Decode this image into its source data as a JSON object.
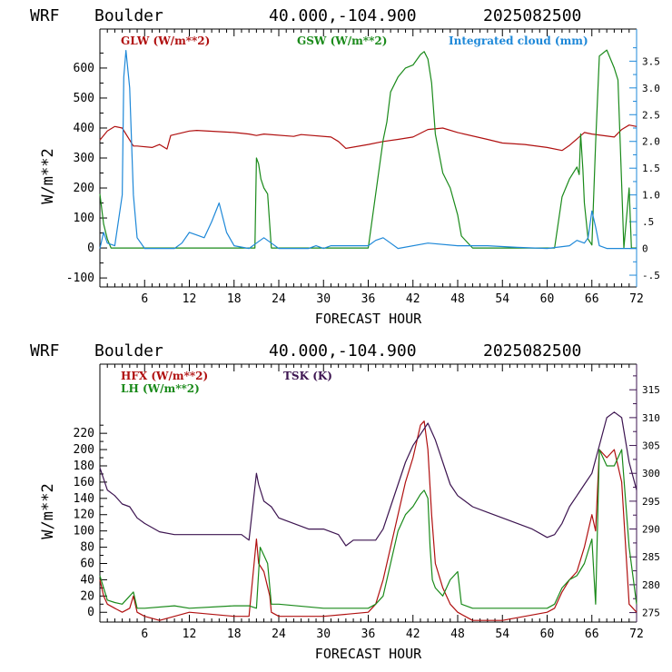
{
  "colors": {
    "red": "#b01010",
    "green": "#1a8a1a",
    "blue": "#1e88d8",
    "purple": "#3c1450",
    "axis": "#000000"
  },
  "chart_data": [
    {
      "type": "line",
      "header": {
        "model": "WRF",
        "location": "Boulder",
        "coords": "40.000,-104.900",
        "date": "2025082500"
      },
      "xlabel": "FORECAST HOUR",
      "ylabel": "W/m**2",
      "xlim": [
        0,
        72
      ],
      "ylim": [
        -130,
        730
      ],
      "y2lim": [
        -0.72,
        4.1
      ],
      "xticks": [
        6,
        12,
        18,
        24,
        30,
        36,
        42,
        48,
        54,
        60,
        66,
        72
      ],
      "yticks": [
        -100,
        0,
        100,
        200,
        300,
        400,
        500,
        600
      ],
      "y2ticks": [
        -0.5,
        0,
        0.5,
        1.0,
        1.5,
        2.0,
        2.5,
        3.0,
        3.5
      ],
      "y2tick_labels": [
        "-.5",
        "0",
        ".5",
        "1.0",
        "1.5",
        "2.0",
        "2.5",
        "3.0",
        "3.5"
      ],
      "series": [
        {
          "name": "GLW (W/m**2)",
          "color": "#b01010",
          "axis": "left",
          "x": [
            0,
            1,
            2,
            3,
            4,
            4.5,
            5,
            7,
            8,
            9,
            9.5,
            12,
            13,
            18,
            20,
            21,
            22,
            26,
            27,
            31,
            32,
            33,
            36,
            38,
            40,
            42,
            44,
            46,
            48,
            52,
            54,
            57,
            60,
            62,
            63,
            65,
            66,
            69,
            70,
            71,
            72
          ],
          "y": [
            360,
            390,
            405,
            400,
            360,
            340,
            340,
            335,
            345,
            330,
            375,
            390,
            392,
            385,
            380,
            375,
            380,
            372,
            378,
            370,
            355,
            332,
            345,
            355,
            362,
            370,
            395,
            400,
            385,
            362,
            350,
            345,
            335,
            325,
            342,
            385,
            380,
            370,
            395,
            410,
            405
          ]
        },
        {
          "name": "GSW (W/m**2)",
          "color": "#1a8a1a",
          "axis": "left",
          "x": [
            0,
            0.5,
            1,
            1.5,
            2,
            19,
            20.8,
            21,
            21.3,
            21.6,
            22,
            22.5,
            23,
            24,
            36,
            37,
            38,
            38.5,
            39,
            40,
            41,
            42,
            43,
            43.5,
            44,
            44.5,
            45,
            46,
            47,
            48,
            48.5,
            50,
            61,
            62,
            63,
            64,
            64.3,
            64.5,
            64.8,
            65,
            65.5,
            66,
            66.5,
            67,
            68,
            69,
            69.5,
            70,
            70.3,
            71,
            71.3,
            72
          ],
          "y": [
            180,
            80,
            30,
            0,
            0,
            0,
            0,
            300,
            280,
            230,
            200,
            180,
            0,
            0,
            0,
            180,
            360,
            420,
            520,
            570,
            600,
            610,
            645,
            655,
            630,
            550,
            380,
            250,
            200,
            110,
            40,
            0,
            0,
            170,
            230,
            270,
            245,
            380,
            260,
            150,
            30,
            10,
            350,
            640,
            660,
            600,
            560,
            210,
            0,
            200,
            0,
            0
          ]
        },
        {
          "name": "Integrated cloud (mm)",
          "color": "#1e88d8",
          "axis": "right",
          "x": [
            0,
            0.5,
            1,
            2,
            3,
            3.2,
            3.5,
            4,
            4.5,
            5,
            6,
            10,
            11,
            12,
            13,
            14,
            15,
            16,
            17,
            18,
            20,
            21,
            22,
            23,
            24,
            28,
            29,
            30,
            31,
            36,
            37,
            38,
            39,
            40,
            44,
            48,
            52,
            56,
            60,
            63,
            64,
            65,
            65.5,
            66,
            66.5,
            67,
            68,
            72
          ],
          "y": [
            0,
            0.3,
            0.1,
            0.05,
            1.0,
            3.2,
            3.7,
            3.0,
            1.0,
            0.2,
            0,
            0,
            0.1,
            0.3,
            0.25,
            0.2,
            0.5,
            0.85,
            0.3,
            0.05,
            0,
            0.1,
            0.2,
            0.1,
            0,
            0,
            0.05,
            0,
            0.05,
            0.05,
            0.15,
            0.2,
            0.1,
            0,
            0.1,
            0.05,
            0.05,
            0.02,
            0,
            0.05,
            0.15,
            0.1,
            0.2,
            0.7,
            0.4,
            0.05,
            0,
            0
          ]
        }
      ]
    },
    {
      "type": "line",
      "header": {
        "model": "WRF",
        "location": "Boulder",
        "coords": "40.000,-104.900",
        "date": "2025082500"
      },
      "xlabel": "FORECAST HOUR",
      "ylabel": "W/m**2",
      "xlim": [
        0,
        72
      ],
      "ylim": [
        -12,
        305
      ],
      "y2lim": [
        273.3,
        319.6
      ],
      "xticks": [
        6,
        12,
        18,
        24,
        30,
        36,
        42,
        48,
        54,
        60,
        66,
        72
      ],
      "yticks": [
        0,
        20,
        40,
        60,
        80,
        100,
        120,
        140,
        160,
        180,
        200,
        220
      ],
      "y2ticks": [
        275,
        280,
        285,
        290,
        295,
        300,
        305,
        310,
        315
      ],
      "y2tick_labels": [
        "275",
        "280",
        "285",
        "290",
        "295",
        "300",
        "305",
        "310",
        "315"
      ],
      "series": [
        {
          "name": "HFX (W/m**2)",
          "color": "#b01010",
          "axis": "left",
          "x": [
            0,
            0.5,
            1,
            2,
            3,
            4,
            4.5,
            5,
            6,
            8,
            12,
            18,
            20,
            21,
            21.3,
            22,
            22.8,
            23,
            24,
            30,
            36,
            37,
            38,
            39,
            40,
            41,
            42,
            43,
            43.5,
            44,
            44.5,
            45,
            46,
            47,
            48,
            50,
            54,
            60,
            61,
            62,
            63,
            64,
            65,
            66,
            66.5,
            67,
            68,
            69,
            70,
            71,
            72
          ],
          "y": [
            40,
            20,
            10,
            5,
            0,
            5,
            20,
            0,
            -5,
            -10,
            0,
            -5,
            -5,
            90,
            60,
            50,
            20,
            0,
            -5,
            -5,
            0,
            10,
            40,
            80,
            120,
            160,
            190,
            230,
            235,
            200,
            120,
            60,
            30,
            10,
            0,
            -10,
            -10,
            0,
            5,
            25,
            40,
            50,
            80,
            120,
            100,
            200,
            190,
            200,
            160,
            10,
            0
          ]
        },
        {
          "name": "LH (W/m**2)",
          "color": "#1a8a1a",
          "axis": "left",
          "x": [
            0,
            1,
            2,
            3,
            4,
            4.5,
            5,
            6,
            10,
            12,
            18,
            20,
            21,
            21.5,
            22,
            22.5,
            23,
            24,
            30,
            36,
            37,
            38,
            39,
            40,
            41,
            42,
            43,
            43.5,
            44,
            44.3,
            44.6,
            45,
            46,
            47,
            48,
            48.5,
            50,
            60,
            61,
            62,
            63,
            64,
            65,
            66,
            66.5,
            67,
            68,
            69,
            70,
            71,
            72
          ],
          "y": [
            45,
            15,
            12,
            10,
            20,
            25,
            5,
            5,
            8,
            5,
            8,
            8,
            5,
            80,
            70,
            60,
            10,
            10,
            5,
            5,
            10,
            20,
            60,
            100,
            120,
            130,
            145,
            150,
            140,
            80,
            40,
            30,
            20,
            40,
            50,
            10,
            5,
            5,
            10,
            30,
            40,
            45,
            60,
            90,
            10,
            200,
            180,
            180,
            200,
            80,
            10
          ]
        },
        {
          "name": "TSK (K)",
          "color": "#3c1450",
          "axis": "right",
          "x": [
            0,
            1,
            2,
            3,
            4,
            5,
            6,
            8,
            10,
            12,
            18,
            19,
            20,
            21,
            21.3,
            22,
            23,
            24,
            26,
            28,
            30,
            32,
            33,
            34,
            36,
            37,
            38,
            39,
            40,
            41,
            42,
            43,
            44,
            45,
            46,
            47,
            48,
            50,
            52,
            54,
            56,
            58,
            60,
            61,
            62,
            63,
            64,
            65,
            66,
            67,
            68,
            69,
            70,
            71,
            72
          ],
          "y": [
            301,
            297,
            296,
            294.5,
            294,
            292,
            291,
            289.5,
            289,
            289,
            289,
            289,
            288,
            300,
            298,
            295,
            294,
            292,
            291,
            290,
            290,
            289,
            287,
            288,
            288,
            288,
            290,
            294,
            298,
            302,
            305,
            307,
            309,
            306,
            302,
            298,
            296,
            294,
            293,
            292,
            291,
            290,
            288.5,
            289,
            291,
            294,
            296,
            298,
            300,
            305,
            310,
            311,
            310,
            302,
            297
          ]
        }
      ]
    }
  ]
}
